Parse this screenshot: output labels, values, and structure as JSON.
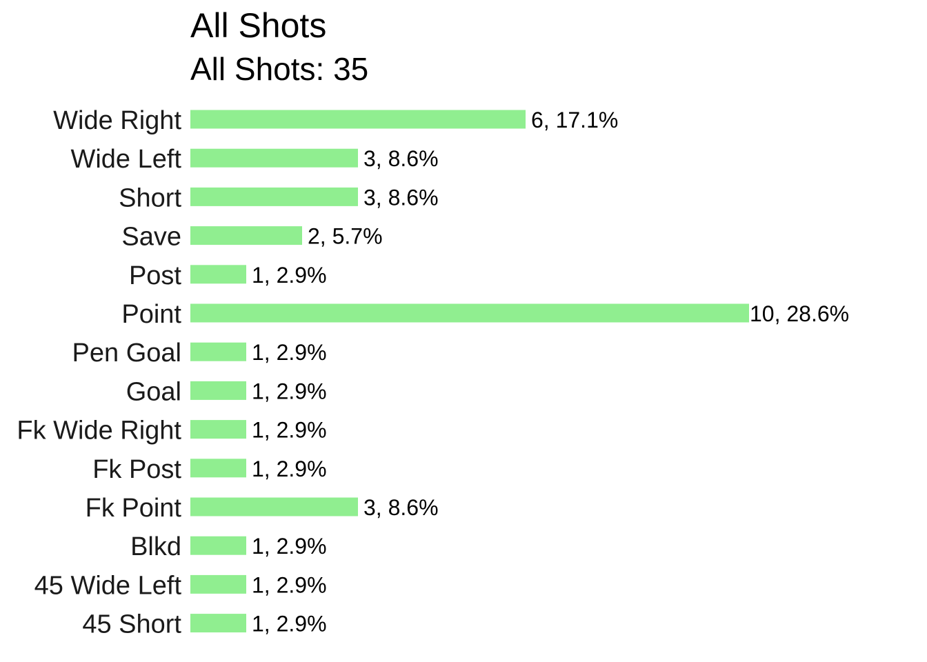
{
  "chart_data": {
    "type": "bar",
    "orientation": "horizontal",
    "title": "All Shots",
    "subtitle": "All Shots: 35",
    "xlabel": "",
    "ylabel": "",
    "grid": false,
    "legend": "none",
    "bar_color": "#90ee90",
    "categories": [
      "Wide Right",
      "Wide Left",
      "Short",
      "Save",
      "Post",
      "Point",
      "Pen Goal",
      "Goal",
      "Fk Wide Right",
      "Fk Post",
      "Fk Point",
      "Blkd",
      "45 Wide Left",
      "45 Short"
    ],
    "values": [
      6,
      3,
      3,
      2,
      1,
      10,
      1,
      1,
      1,
      1,
      3,
      1,
      1,
      1
    ],
    "data_labels": [
      "6, 17.1%",
      "3, 8.6%",
      "3, 8.6%",
      "2, 5.7%",
      "1, 2.9%",
      "10, 28.6%",
      "1, 2.9%",
      "1, 2.9%",
      "1, 2.9%",
      "1, 2.9%",
      "3, 8.6%",
      "1, 2.9%",
      "1, 2.9%",
      "1, 2.9%"
    ],
    "xlim": [
      0,
      10
    ]
  }
}
